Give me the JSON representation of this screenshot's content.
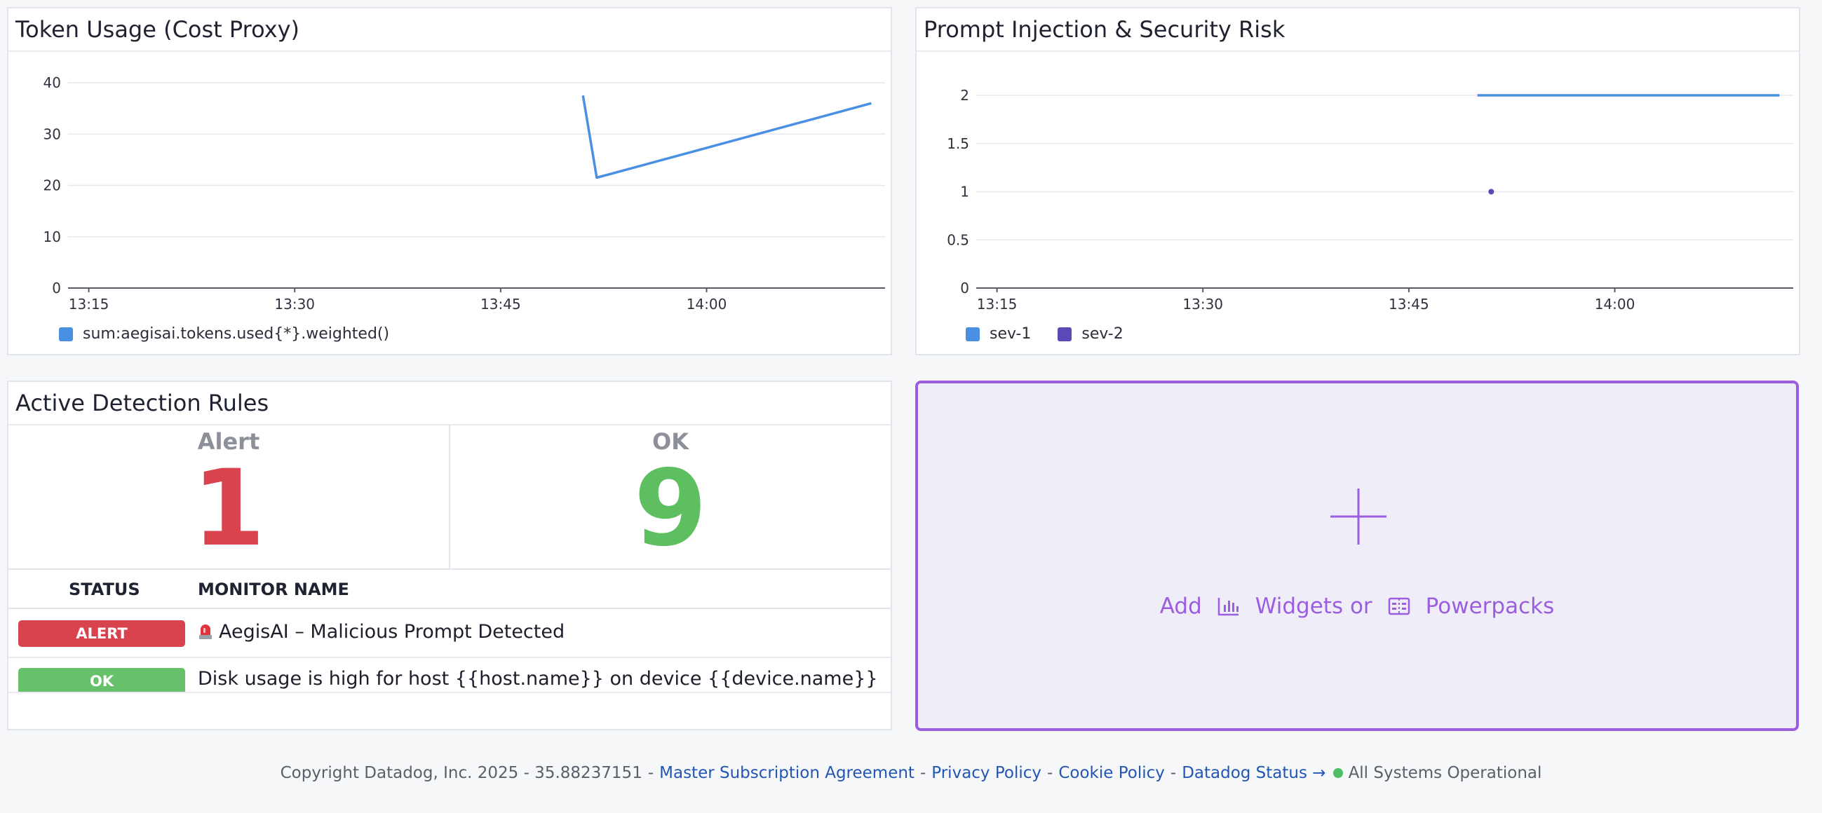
{
  "widgets": {
    "token_usage": {
      "title": "Token Usage (Cost Proxy)",
      "legend": [
        {
          "label": "sum:aegisai.tokens.used{*}.weighted()",
          "color": "#4a90e2"
        }
      ]
    },
    "prompt_injection": {
      "title": "Prompt Injection & Security Risk",
      "legend": [
        {
          "label": "sev-1",
          "color": "#4a90e2"
        },
        {
          "label": "sev-2",
          "color": "#5b49b8"
        }
      ]
    },
    "detection_rules": {
      "title": "Active Detection Rules",
      "summary": [
        {
          "label": "Alert",
          "value": "1",
          "color": "#d9434e"
        },
        {
          "label": "OK",
          "value": "9",
          "color": "#5dbf60"
        }
      ],
      "columns": {
        "status": "STATUS",
        "name": "MONITOR NAME"
      },
      "rows": [
        {
          "status": "ALERT",
          "status_color": "#d9434e",
          "icon": "siren-icon",
          "name": "AegisAI – Malicious Prompt Detected"
        },
        {
          "status": "OK",
          "status_color": "#66c16a",
          "name": "Disk usage is high for host {{host.name}} on device {{device.name}}"
        }
      ]
    },
    "add_widget": {
      "add": "Add",
      "widgets": "Widgets or",
      "powerpacks": "Powerpacks"
    }
  },
  "chart_data": [
    {
      "type": "line",
      "title": "Token Usage (Cost Proxy)",
      "x_ticks": [
        "13:15",
        "13:30",
        "13:45",
        "14:00"
      ],
      "y_ticks": [
        0,
        10,
        20,
        30,
        40
      ],
      "ylim": [
        0,
        40
      ],
      "xlim_minutes": [
        "13:14",
        "14:13"
      ],
      "series": [
        {
          "name": "sum:aegisai.tokens.used{*}.weighted()",
          "color": "#4a90e2",
          "points": [
            [
              "13:51",
              37.5
            ],
            [
              "13:52",
              21.5
            ],
            [
              "14:12",
              36
            ]
          ]
        }
      ],
      "grid": true,
      "legend": "bottom-left"
    },
    {
      "type": "line",
      "title": "Prompt Injection & Security Risk",
      "x_ticks": [
        "13:15",
        "13:30",
        "13:45",
        "14:00"
      ],
      "y_ticks": [
        0,
        0.5,
        1,
        1.5,
        2
      ],
      "ylim": [
        0,
        2
      ],
      "xlim_minutes": [
        "13:14",
        "14:13"
      ],
      "series": [
        {
          "name": "sev-1",
          "color": "#4a90e2",
          "points": [
            [
              "13:50",
              2
            ],
            [
              "14:12",
              2
            ]
          ]
        },
        {
          "name": "sev-2",
          "color": "#5b49b8",
          "points": [
            [
              "13:51",
              1
            ]
          ]
        }
      ],
      "grid": true,
      "legend": "bottom-left"
    }
  ],
  "footer": {
    "copyright": "Copyright Datadog, Inc. 2025 - 35.88237151",
    "links": [
      "Master Subscription Agreement",
      "Privacy Policy",
      "Cookie Policy",
      "Datadog Status →"
    ],
    "status": "All Systems Operational"
  }
}
